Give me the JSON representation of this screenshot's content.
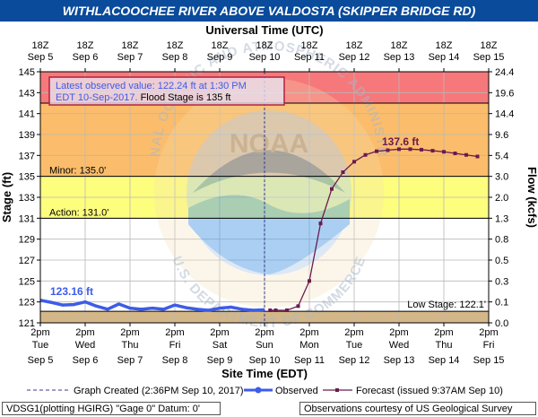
{
  "chart_data": {
    "type": "line",
    "title": "WITHLACOOCHEE RIVER ABOVE VALDOSTA (SKIPPER BRIDGE RD)",
    "top_axis_label": "Universal Time (UTC)",
    "xlabel": "Site Time (EDT)",
    "ylabel": "Stage (ft)",
    "y2label": "Flow (kcfs)",
    "ylim": [
      121,
      145
    ],
    "utc_ticks": [
      [
        "18Z",
        "Sep 5"
      ],
      [
        "18Z",
        "Sep 6"
      ],
      [
        "18Z",
        "Sep 7"
      ],
      [
        "18Z",
        "Sep 8"
      ],
      [
        "18Z",
        "Sep 9"
      ],
      [
        "18Z",
        "Sep 10"
      ],
      [
        "18Z",
        "Sep 11"
      ],
      [
        "18Z",
        "Sep 12"
      ],
      [
        "18Z",
        "Sep 13"
      ],
      [
        "18Z",
        "Sep 14"
      ],
      [
        "18Z",
        "Sep 15"
      ]
    ],
    "local_ticks": [
      [
        "2pm",
        "Tue",
        "Sep 5"
      ],
      [
        "2pm",
        "Wed",
        "Sep 6"
      ],
      [
        "2pm",
        "Thu",
        "Sep 7"
      ],
      [
        "2pm",
        "Fri",
        "Sep 8"
      ],
      [
        "2pm",
        "Sat",
        "Sep 9"
      ],
      [
        "2pm",
        "Sun",
        "Sep 10"
      ],
      [
        "2pm",
        "Mon",
        "Sep 11"
      ],
      [
        "2pm",
        "Tue",
        "Sep 12"
      ],
      [
        "2pm",
        "Wed",
        "Sep 13"
      ],
      [
        "2pm",
        "Thu",
        "Sep 14"
      ],
      [
        "2pm",
        "Fri",
        "Sep 15"
      ]
    ],
    "y_ticks": [
      121,
      123,
      125,
      127,
      129,
      131,
      133,
      135,
      137,
      139,
      141,
      143,
      145
    ],
    "flow_ticks": [
      [
        121,
        "0.0"
      ],
      [
        123,
        "0.1"
      ],
      [
        125,
        "0.3"
      ],
      [
        127,
        "0.5"
      ],
      [
        129,
        "0.8"
      ],
      [
        131,
        "1.3"
      ],
      [
        133,
        "2.0"
      ],
      [
        135,
        "3.0"
      ],
      [
        137,
        "5.4"
      ],
      [
        139,
        "9.6"
      ],
      [
        141,
        "14.4"
      ],
      [
        143,
        "19.6"
      ],
      [
        145,
        "24.4"
      ]
    ],
    "bands": [
      {
        "from": 142,
        "to": 145,
        "color": "#f7787a"
      },
      {
        "from": 137,
        "to": 142,
        "color": "#fbbd6b"
      },
      {
        "from": 135,
        "to": 137,
        "color": "#fbbd6b"
      },
      {
        "from": 131,
        "to": 135,
        "color": "#fdfd7e"
      },
      {
        "from": 122.1,
        "to": 131,
        "color": "#ffffff"
      },
      {
        "from": 121,
        "to": 122.1,
        "color": "#d4b788"
      }
    ],
    "stage_lines": [
      {
        "value": 142,
        "label": ""
      },
      {
        "value": 135,
        "label": "Minor:  135.0'"
      },
      {
        "value": 131,
        "label": "Action:  131.0'"
      },
      {
        "value": 122.1,
        "label": "Low Stage:  122.1'"
      }
    ],
    "graph_created_day": 5.0,
    "observed": {
      "name": "Observed",
      "color": "#3d5ce8",
      "x": [
        0,
        0.25,
        0.5,
        0.75,
        1.0,
        1.25,
        1.5,
        1.75,
        2.0,
        2.25,
        2.5,
        2.75,
        3.0,
        3.25,
        3.5,
        3.75,
        4.0,
        4.25,
        4.5,
        4.75,
        4.97
      ],
      "y": [
        123.16,
        122.95,
        122.7,
        122.75,
        123.0,
        122.6,
        122.3,
        122.8,
        122.4,
        122.3,
        122.4,
        122.3,
        122.7,
        122.45,
        122.3,
        122.2,
        122.4,
        122.5,
        122.3,
        122.2,
        122.24
      ]
    },
    "forecast": {
      "name": "Forecast",
      "color": "#6b1a4e",
      "x": [
        5.125,
        5.25,
        5.5,
        5.75,
        6.0,
        6.25,
        6.5,
        6.75,
        7.0,
        7.25,
        7.5,
        7.75,
        8.0,
        8.25,
        8.5,
        8.75,
        9.0,
        9.25,
        9.5,
        9.75
      ],
      "y": [
        122.2,
        122.2,
        122.2,
        122.6,
        125.0,
        130.5,
        133.8,
        135.4,
        136.4,
        137.05,
        137.4,
        137.5,
        137.6,
        137.6,
        137.55,
        137.45,
        137.35,
        137.2,
        137.05,
        136.9
      ]
    },
    "annotations": {
      "latest_line1": "Latest observed value: 122.24 ft at 1:30 PM",
      "latest_line2_pre": "EDT 10-Sep-2017. ",
      "latest_line2_post": "Flood Stage is 135 ft",
      "observed_label": "123.16 ft",
      "forecast_label": "137.6 ft"
    },
    "legend": {
      "created": "Graph Created (2:36PM Sep 10, 2017)",
      "observed": "Observed",
      "forecast": "Forecast (issued 9:37AM Sep 10)"
    },
    "watermark": {
      "arc_top": "NATIONAL OCEANIC AND ATMOSPHERIC ADMINISTRATION",
      "center": "NOAA",
      "arc_bottom": "U.S. DEPARTMENT OF COMMERCE"
    }
  },
  "footer": {
    "left": "VDSG1(plotting HGIRG) \"Gage 0\" Datum: 0'",
    "right": "Observations courtesy of US Geological Survey"
  }
}
